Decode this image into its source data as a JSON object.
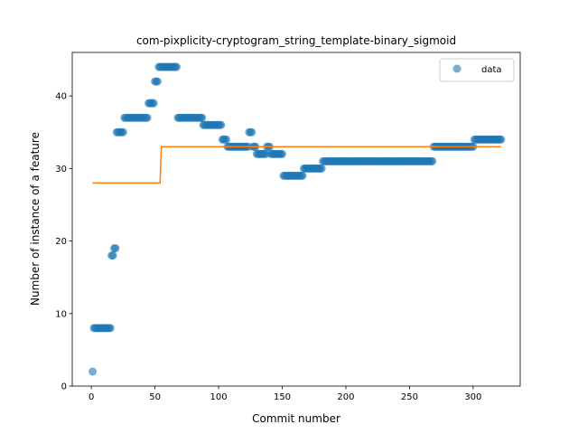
{
  "chart_data": {
    "type": "scatter",
    "title": "com-pixplicity-cryptogram_string_template-binary_sigmoid",
    "xlabel": "Commit number",
    "ylabel": "Number of instance of a feature",
    "xlim": [
      -15,
      337
    ],
    "ylim": [
      0,
      46
    ],
    "xticks": [
      0,
      50,
      100,
      150,
      200,
      250,
      300
    ],
    "yticks": [
      0,
      10,
      20,
      30,
      40
    ],
    "legend": {
      "position": "top-right",
      "entries": [
        "data"
      ]
    },
    "colors": {
      "data": "#1f77b4",
      "fit": "#ff7f0e"
    },
    "series": [
      {
        "name": "data",
        "kind": "scatter",
        "segments": [
          {
            "x_start": 1,
            "x_end": 1,
            "y": 2
          },
          {
            "x_start": 2,
            "x_end": 15,
            "y": 8
          },
          {
            "x_start": 16,
            "x_end": 17,
            "y": 18
          },
          {
            "x_start": 18,
            "x_end": 19,
            "y": 19
          },
          {
            "x_start": 20,
            "x_end": 25,
            "y": 35
          },
          {
            "x_start": 26,
            "x_end": 44,
            "y": 37
          },
          {
            "x_start": 45,
            "x_end": 49,
            "y": 39
          },
          {
            "x_start": 50,
            "x_end": 52,
            "y": 42
          },
          {
            "x_start": 53,
            "x_end": 67,
            "y": 44
          },
          {
            "x_start": 68,
            "x_end": 87,
            "y": 37
          },
          {
            "x_start": 88,
            "x_end": 102,
            "y": 36
          },
          {
            "x_start": 103,
            "x_end": 106,
            "y": 34
          },
          {
            "x_start": 107,
            "x_end": 123,
            "y": 33
          },
          {
            "x_start": 124,
            "x_end": 126,
            "y": 35
          },
          {
            "x_start": 127,
            "x_end": 129,
            "y": 33
          },
          {
            "x_start": 130,
            "x_end": 137,
            "y": 32
          },
          {
            "x_start": 138,
            "x_end": 140,
            "y": 33
          },
          {
            "x_start": 141,
            "x_end": 150,
            "y": 32
          },
          {
            "x_start": 151,
            "x_end": 166,
            "y": 29
          },
          {
            "x_start": 167,
            "x_end": 181,
            "y": 30
          },
          {
            "x_start": 182,
            "x_end": 268,
            "y": 31
          },
          {
            "x_start": 269,
            "x_end": 300,
            "y": 33
          },
          {
            "x_start": 301,
            "x_end": 322,
            "y": 34
          }
        ]
      },
      {
        "name": "",
        "kind": "step-line",
        "points": [
          [
            1,
            28
          ],
          [
            54,
            28
          ],
          [
            55,
            33
          ],
          [
            322,
            33
          ]
        ]
      }
    ]
  }
}
